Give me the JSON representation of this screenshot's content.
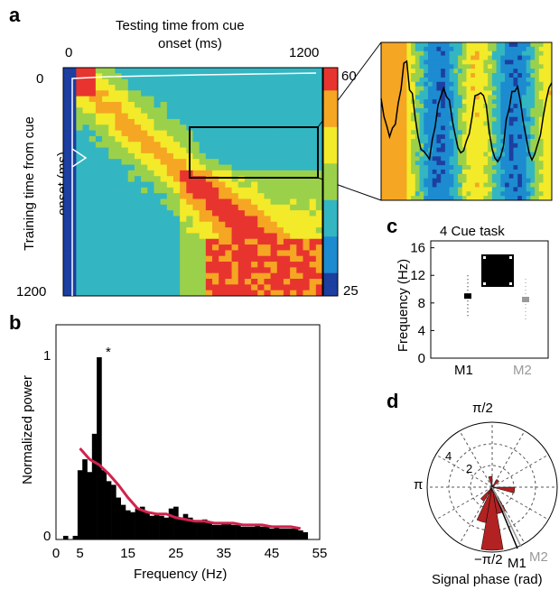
{
  "figure": {
    "panel_a": {
      "letter": "a",
      "xlabel_line1": "Testing time from cue",
      "xlabel_line2": "onset (ms)",
      "ylabel_line1": "Training time from cue",
      "ylabel_line2": "onset (ms)",
      "x_ticks": [
        "0",
        "1200"
      ],
      "y_ticks": [
        "0",
        "1200"
      ],
      "colorbar_ticks": [
        "60",
        "25"
      ],
      "colormap": [
        "#1c3fa0",
        "#1d8bd0",
        "#33b6c2",
        "#9bd14a",
        "#f3ea2a",
        "#f5a623",
        "#e8342e"
      ]
    },
    "panel_b": {
      "letter": "b",
      "ylabel": "Normalized power",
      "xlabel": "Frequency (Hz)",
      "y_ticks": [
        "0",
        "1"
      ],
      "x_ticks": [
        "0",
        "5",
        "15",
        "25",
        "35",
        "45",
        "55"
      ],
      "star": "*",
      "bar_color": "#000000",
      "line_color": "#d0234d"
    },
    "panel_c": {
      "letter": "c",
      "title": "4 Cue task",
      "ylabel": "Frequency (Hz)",
      "y_ticks": [
        "0",
        "4",
        "8",
        "12",
        "16"
      ],
      "categories": [
        "M1",
        "M2"
      ],
      "m1_color": "#000000",
      "m2_color": "#9a9a9a"
    },
    "panel_d": {
      "letter": "d",
      "xlabel": "Signal phase (rad)",
      "angle_labels": [
        "π/2",
        "π",
        "−π/2"
      ],
      "radial_labels": [
        "4",
        "2"
      ],
      "series": [
        "M1",
        "M2"
      ],
      "rose_color": "#b22222",
      "m2_color": "#9a9a9a"
    }
  },
  "chart_data": [
    {
      "type": "heatmap",
      "title": "",
      "xlabel": "Testing time from cue onset (ms)",
      "ylabel": "Training time from cue onset (ms)",
      "xlim": [
        0,
        1200
      ],
      "ylim": [
        0,
        1200
      ],
      "colorbar_range": [
        25,
        60
      ]
    },
    {
      "type": "bar",
      "title": "",
      "xlabel": "Frequency (Hz)",
      "ylabel": "Normalized power",
      "xlim": [
        0,
        55
      ],
      "ylim": [
        0,
        1
      ],
      "x": [
        2,
        4,
        5,
        6,
        7,
        8,
        9,
        10,
        11,
        12,
        13,
        14,
        15,
        16,
        17,
        18,
        19,
        20,
        21,
        22,
        23,
        24,
        25,
        26,
        27,
        28,
        29,
        30,
        31,
        32,
        33,
        34,
        35,
        36,
        37,
        38,
        39,
        40,
        41,
        42,
        43,
        44,
        45,
        46,
        47,
        48,
        49,
        50,
        51,
        52
      ],
      "values": [
        0.02,
        0.02,
        0.38,
        0.44,
        0.37,
        0.58,
        1.0,
        0.38,
        0.32,
        0.3,
        0.23,
        0.19,
        0.16,
        0.15,
        0.17,
        0.18,
        0.15,
        0.13,
        0.14,
        0.13,
        0.12,
        0.17,
        0.18,
        0.12,
        0.14,
        0.12,
        0.1,
        0.1,
        0.11,
        0.09,
        0.08,
        0.08,
        0.09,
        0.09,
        0.08,
        0.08,
        0.07,
        0.07,
        0.07,
        0.08,
        0.07,
        0.07,
        0.06,
        0.07,
        0.06,
        0.06,
        0.06,
        0.06,
        0.05,
        0.04
      ],
      "series": [
        {
          "x": [
            5,
            7,
            9,
            11,
            13,
            15,
            17,
            19,
            21,
            23,
            25,
            27,
            29,
            31,
            33,
            35,
            37,
            39,
            41,
            43,
            45,
            47,
            49,
            51
          ],
          "values": [
            0.5,
            0.44,
            0.41,
            0.36,
            0.3,
            0.23,
            0.17,
            0.15,
            0.14,
            0.14,
            0.12,
            0.11,
            0.1,
            0.1,
            0.09,
            0.09,
            0.09,
            0.08,
            0.08,
            0.08,
            0.07,
            0.07,
            0.07,
            0.06
          ]
        }
      ]
    },
    {
      "type": "scatter",
      "title": "4 Cue task",
      "ylabel": "Frequency (Hz)",
      "categories": [
        "M1",
        "M2"
      ],
      "values": [
        9,
        8.5
      ],
      "ylim": [
        0,
        17
      ]
    },
    {
      "type": "rose",
      "title": "",
      "xlabel": "Signal phase (rad)",
      "series": [
        "M1",
        "M2"
      ],
      "rlim": [
        0,
        6
      ]
    }
  ]
}
